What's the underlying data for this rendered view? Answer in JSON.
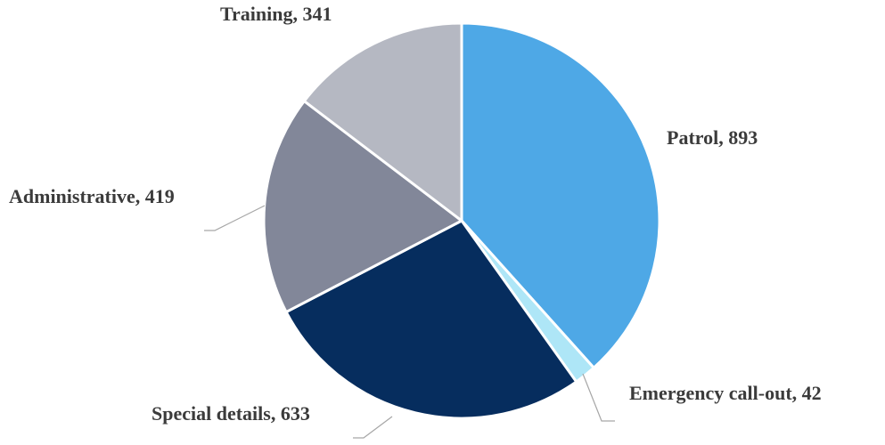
{
  "chart_data": {
    "type": "pie",
    "categories": [
      "Patrol",
      "Emergency call-out",
      "Special details",
      "Administrative",
      "Training"
    ],
    "values": [
      893,
      42,
      633,
      419,
      341
    ],
    "colors": [
      "#4ea8e6",
      "#aee6f7",
      "#062d5e",
      "#828799",
      "#b5b8c2"
    ]
  }
}
